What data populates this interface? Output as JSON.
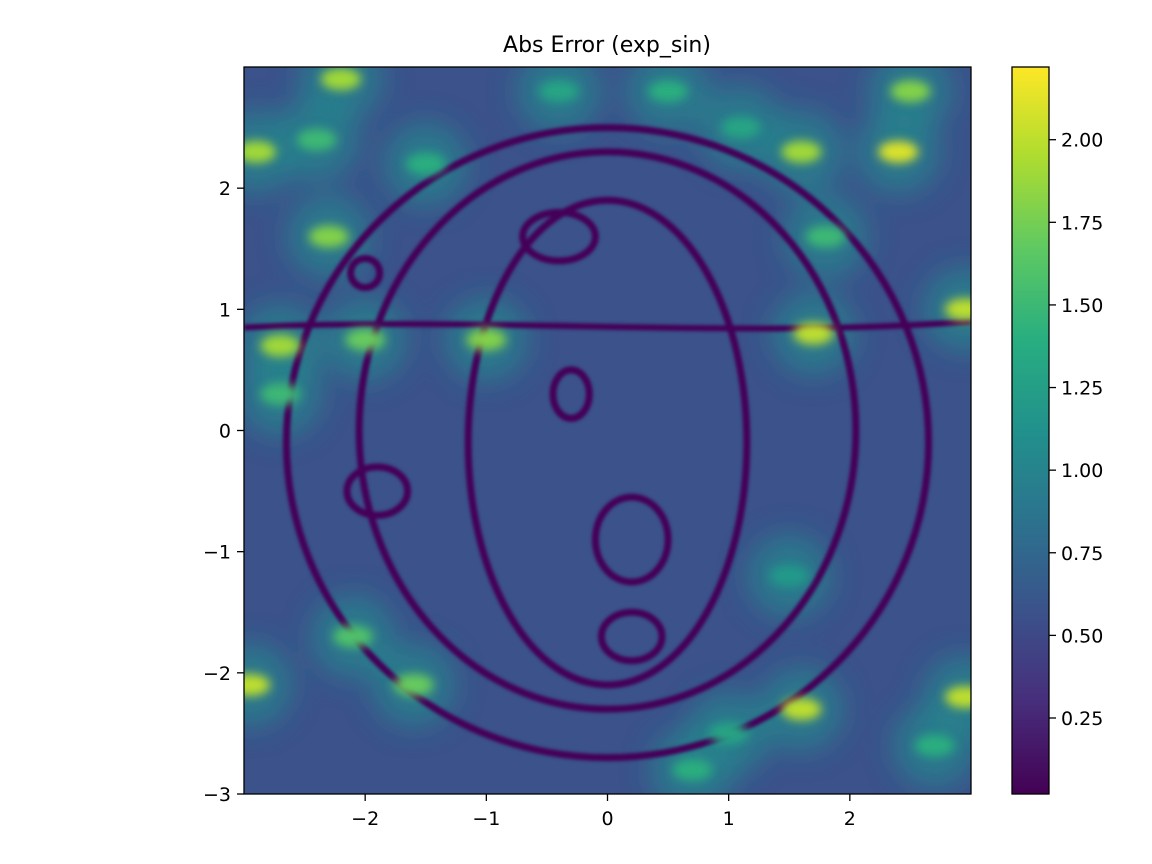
{
  "chart_data": {
    "type": "heatmap",
    "title": "Abs Error (exp_sin)",
    "xlabel": "",
    "ylabel": "",
    "xlim": [
      -3,
      3
    ],
    "ylim": [
      -3,
      3
    ],
    "x_ticks": [
      -2,
      -1,
      0,
      1,
      2
    ],
    "y_ticks": [
      -3,
      -2,
      -1,
      0,
      1,
      2
    ],
    "x_tick_labels": [
      "−2",
      "−1",
      "0",
      "1",
      "2"
    ],
    "y_tick_labels": [
      "−3",
      "−2",
      "−1",
      "0",
      "1",
      "2"
    ],
    "colormap": "viridis",
    "color_range": [
      0.02,
      2.22
    ],
    "colorbar_ticks": [
      0.25,
      0.5,
      0.75,
      1.0,
      1.25,
      1.5,
      1.75,
      2.0
    ],
    "colorbar_tick_labels": [
      "0.25",
      "0.50",
      "0.75",
      "1.00",
      "1.25",
      "1.50",
      "1.75",
      "2.00"
    ],
    "grid": false,
    "legend": "none",
    "hotspots": [
      {
        "x": 2.4,
        "y": 2.3,
        "value": 2.1
      },
      {
        "x": -2.2,
        "y": 2.9,
        "value": 1.9
      },
      {
        "x": 2.5,
        "y": 2.8,
        "value": 1.8
      },
      {
        "x": 2.95,
        "y": 1.0,
        "value": 2.0
      },
      {
        "x": -2.9,
        "y": 2.3,
        "value": 1.9
      },
      {
        "x": 1.7,
        "y": 0.8,
        "value": 2.0
      },
      {
        "x": 1.6,
        "y": -2.3,
        "value": 2.0
      },
      {
        "x": -2.95,
        "y": -2.1,
        "value": 2.0
      },
      {
        "x": 2.95,
        "y": -2.2,
        "value": 2.0
      },
      {
        "x": -2.3,
        "y": 1.6,
        "value": 1.8
      },
      {
        "x": -2.7,
        "y": 0.7,
        "value": 1.9
      },
      {
        "x": -1.0,
        "y": 0.75,
        "value": 1.8
      },
      {
        "x": 1.6,
        "y": 2.3,
        "value": 1.9
      },
      {
        "x": -2.0,
        "y": 0.75,
        "value": 1.7
      },
      {
        "x": -1.6,
        "y": -2.1,
        "value": 1.7
      },
      {
        "x": -2.1,
        "y": -1.7,
        "value": 1.6
      },
      {
        "x": -2.7,
        "y": 0.3,
        "value": 1.5
      },
      {
        "x": 1.8,
        "y": 1.6,
        "value": 1.5
      },
      {
        "x": -1.5,
        "y": 2.2,
        "value": 1.4
      },
      {
        "x": 0.5,
        "y": 2.8,
        "value": 1.4
      },
      {
        "x": -0.4,
        "y": 2.8,
        "value": 1.3
      },
      {
        "x": 0.7,
        "y": -2.8,
        "value": 1.4
      },
      {
        "x": 1.1,
        "y": 2.5,
        "value": 1.3
      },
      {
        "x": 2.7,
        "y": -2.6,
        "value": 1.4
      },
      {
        "x": -2.4,
        "y": 2.4,
        "value": 1.5
      },
      {
        "x": 1.5,
        "y": -1.2,
        "value": 1.2
      },
      {
        "x": 1.0,
        "y": -2.5,
        "value": 1.3
      }
    ],
    "low_rings": [
      {
        "cx": 0.0,
        "cy": -0.1,
        "rx": 2.65,
        "ry": 2.6,
        "value": 0.05
      },
      {
        "cx": 0.0,
        "cy": 0.0,
        "rx": 2.05,
        "ry": 2.3,
        "value": 0.05
      },
      {
        "cx": 0.0,
        "cy": -0.1,
        "rx": 1.15,
        "ry": 2.0,
        "value": 0.05
      },
      {
        "cx": -2.0,
        "cy": 1.3,
        "rx": 0.12,
        "ry": 0.12,
        "value": 0.05
      },
      {
        "cx": -1.9,
        "cy": -0.5,
        "rx": 0.25,
        "ry": 0.2,
        "value": 0.05
      },
      {
        "cx": -0.4,
        "cy": 1.6,
        "rx": 0.3,
        "ry": 0.2,
        "value": 0.05
      },
      {
        "cx": 0.2,
        "cy": -0.9,
        "rx": 0.3,
        "ry": 0.35,
        "value": 0.05
      },
      {
        "cx": -0.3,
        "cy": 0.3,
        "rx": 0.15,
        "ry": 0.2,
        "value": 0.05
      },
      {
        "cx": 0.2,
        "cy": -1.7,
        "rx": 0.25,
        "ry": 0.2,
        "value": 0.05
      }
    ]
  }
}
